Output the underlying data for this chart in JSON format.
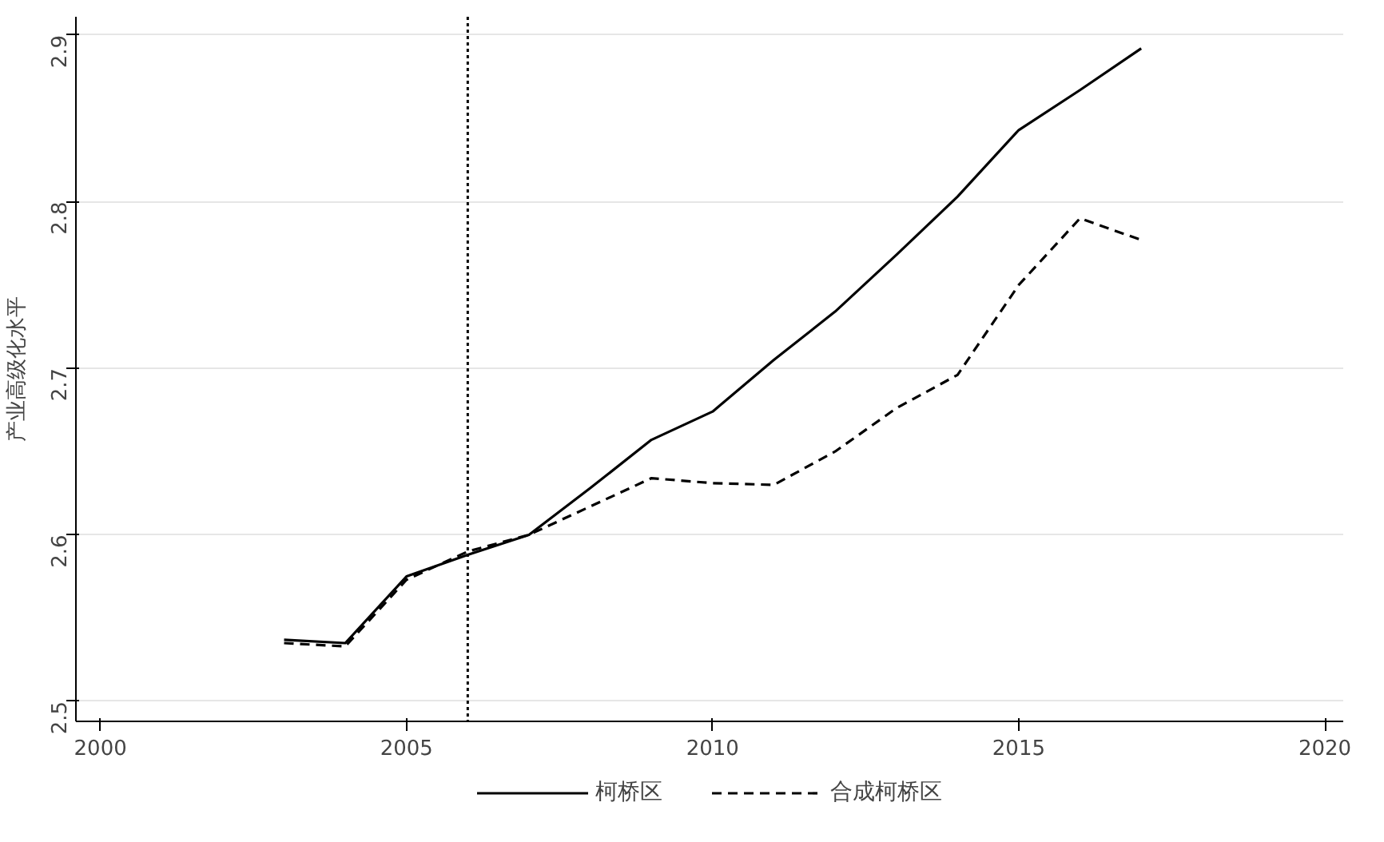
{
  "chart_data": {
    "type": "line",
    "ylabel": "产业高级化水平",
    "x": [
      2003,
      2004,
      2005,
      2006,
      2007,
      2008,
      2009,
      2010,
      2011,
      2012,
      2013,
      2014,
      2015,
      2016,
      2017
    ],
    "series": [
      {
        "name": "柯桥区",
        "color": "#000000",
        "line_style": "solid",
        "values": [
          2.537,
          2.535,
          2.575,
          2.588,
          2.6,
          2.628,
          2.657,
          2.674,
          2.705,
          2.734,
          2.768,
          2.803,
          2.843,
          2.867,
          2.892
        ]
      },
      {
        "name": "合成柯桥区",
        "color": "#000000",
        "line_style": "dashed",
        "values": [
          2.535,
          2.533,
          2.573,
          2.59,
          2.6,
          2.617,
          2.634,
          2.631,
          2.63,
          2.65,
          2.676,
          2.696,
          2.75,
          2.79,
          2.777
        ]
      }
    ],
    "xlim": [
      1999.6,
      2020.3
    ],
    "ylim": [
      2.488,
      2.911
    ],
    "xticks": [
      2000,
      2005,
      2010,
      2015,
      2020
    ],
    "yticks": [
      2.5,
      2.6,
      2.7,
      2.8,
      2.9
    ],
    "ref_lines": [
      {
        "axis": "x",
        "value": 2006,
        "line_style": "dotted",
        "color": "#000000"
      }
    ],
    "grid": "y",
    "legend": "bottom",
    "marker": "none"
  }
}
